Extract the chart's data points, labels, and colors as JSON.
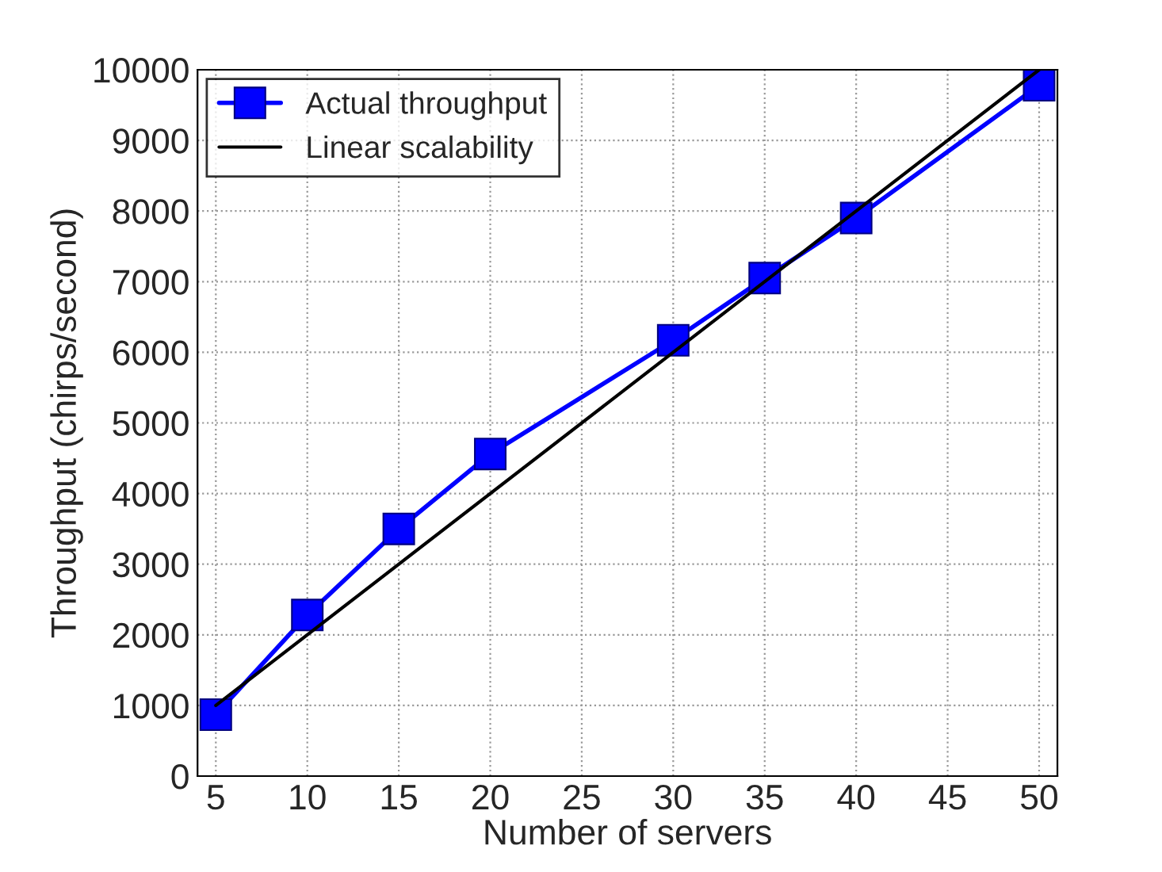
{
  "chart_data": {
    "type": "line",
    "xlabel": "Number of servers",
    "ylabel": "Throughput (chirps/second)",
    "series": [
      {
        "name": "Actual throughput",
        "color": "#0000ff",
        "x": [
          5,
          10,
          15,
          20,
          30,
          35,
          40,
          50
        ],
        "values": [
          870,
          2280,
          3500,
          4560,
          6170,
          7050,
          7900,
          9780
        ],
        "marker": "square"
      },
      {
        "name": "Linear scalability",
        "color": "#000000",
        "x": [
          5,
          50
        ],
        "values": [
          1000,
          10000
        ],
        "marker": "none"
      }
    ],
    "xlim": [
      4,
      51
    ],
    "xticks": [
      5,
      10,
      15,
      20,
      25,
      30,
      35,
      40,
      45,
      50
    ],
    "ylim": [
      0,
      10000
    ],
    "yticks": [
      0,
      1000,
      2000,
      3000,
      4000,
      5000,
      6000,
      7000,
      8000,
      9000,
      10000
    ],
    "grid": true,
    "legend": "top left",
    "line_style": "solid"
  }
}
